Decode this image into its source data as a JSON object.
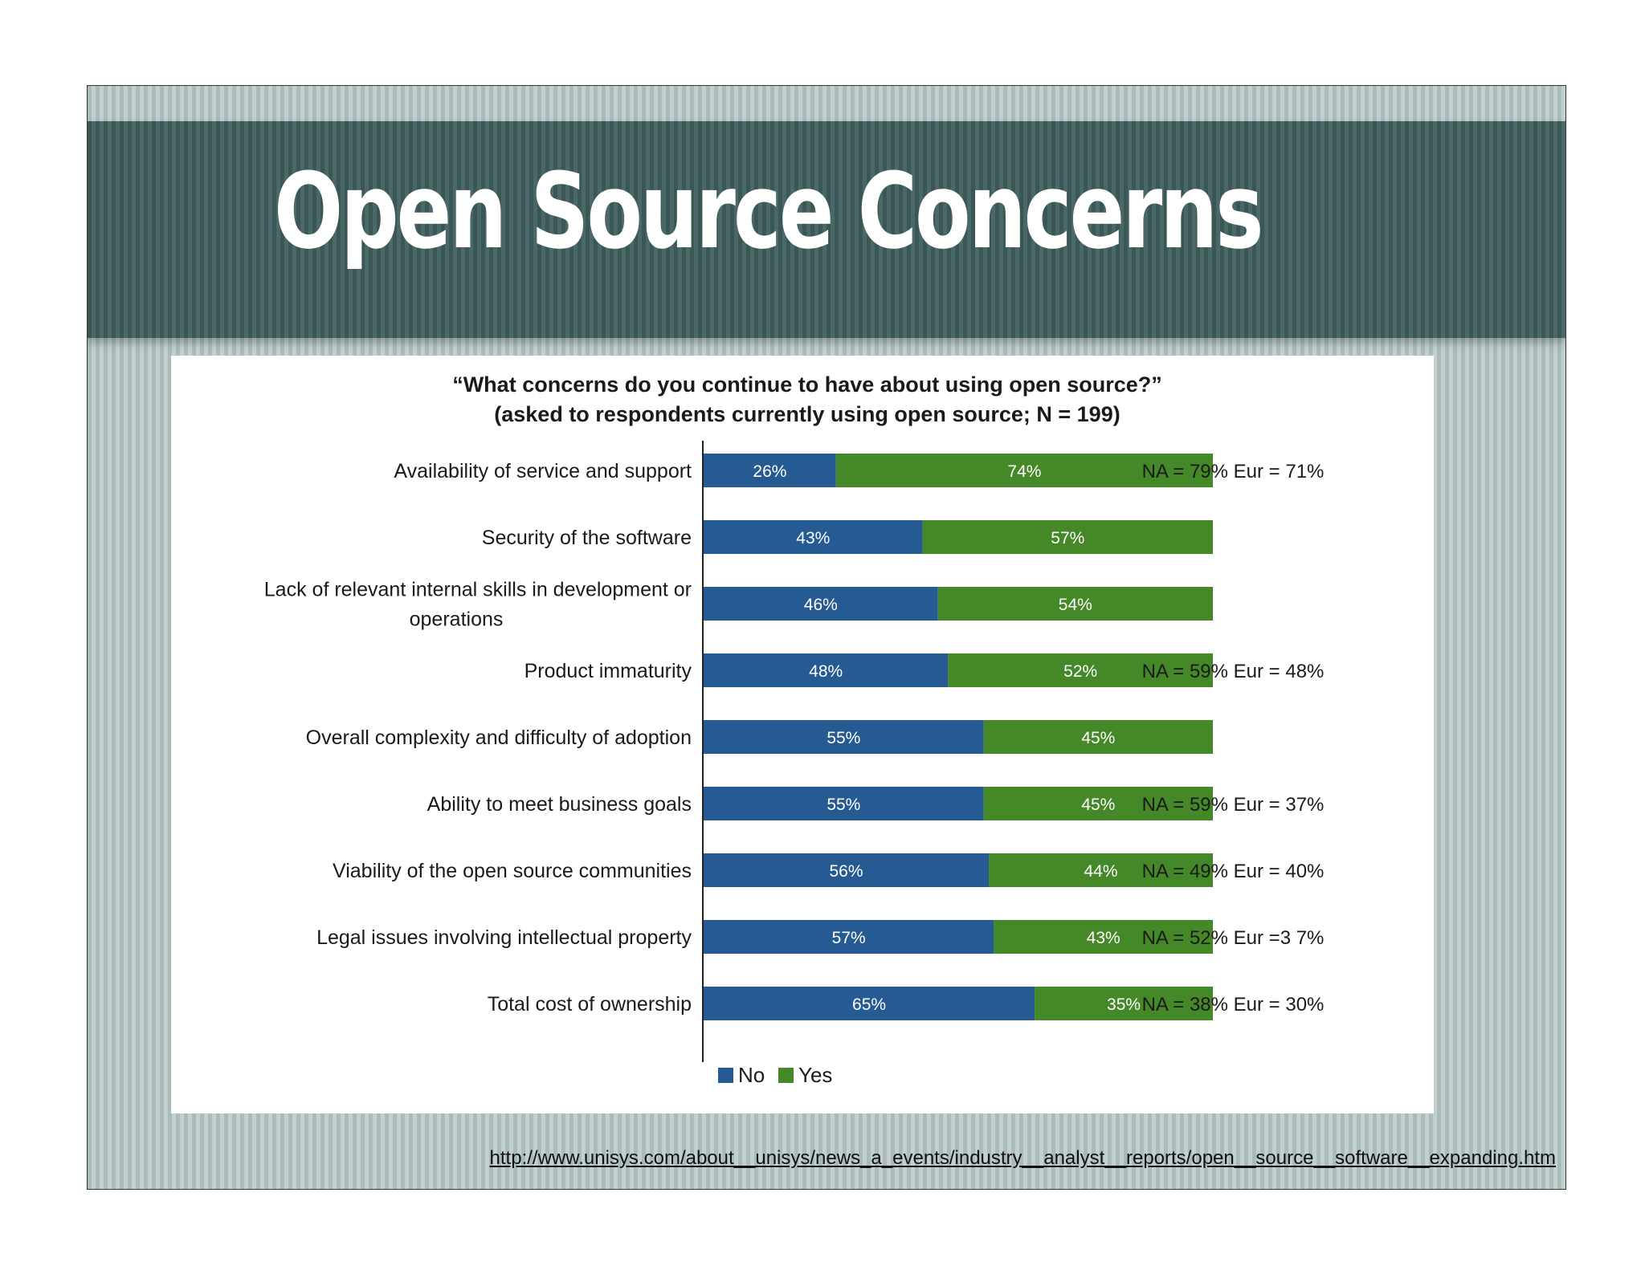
{
  "slide": {
    "title": "Open Source Concerns",
    "source_url": "http://www.unisys.com/about__unisys/news_a_events/industry__analyst__reports/open__source__software__expanding.htm"
  },
  "colors": {
    "no": "#265a92",
    "yes": "#458828",
    "axis": "#222222"
  },
  "chart_data": {
    "type": "bar",
    "orientation": "horizontal",
    "stacked": true,
    "title": "“What concerns do you continue to have about using open source?”",
    "subtitle": "(asked to respondents currently using open source; N = 199)",
    "categories": [
      "Availability of service and support",
      "Security of the software",
      "Lack of relevant internal skills in development or operations",
      "Product immaturity",
      "Overall complexity and difficulty of adoption",
      "Ability to meet business goals",
      "Viability of the open source communities",
      "Legal issues involving intellectual property",
      "Total cost of ownership"
    ],
    "category_lines": [
      [
        "Availability of service and support"
      ],
      [
        "Security of the software"
      ],
      [
        "Lack of relevant internal skills in development or",
        "operations"
      ],
      [
        "Product immaturity"
      ],
      [
        "Overall complexity and difficulty of adoption"
      ],
      [
        "Ability to meet business goals"
      ],
      [
        "Viability of the open source communities"
      ],
      [
        "Legal issues involving intellectual property"
      ],
      [
        "Total cost of ownership"
      ]
    ],
    "series": [
      {
        "name": "No",
        "values": [
          26,
          43,
          46,
          48,
          55,
          55,
          56,
          57,
          65
        ],
        "labels": [
          "26%",
          "43%",
          "46%",
          "48%",
          "55%",
          "55%",
          "56%",
          "57%",
          "65%"
        ]
      },
      {
        "name": "Yes",
        "values": [
          74,
          57,
          54,
          52,
          45,
          45,
          44,
          43,
          35
        ],
        "labels": [
          "74%",
          "57%",
          "54%",
          "52%",
          "45%",
          "45%",
          "44%",
          "43%",
          "35%"
        ]
      }
    ],
    "xlim": [
      0,
      100
    ],
    "annotations": [
      "NA = 79% Eur = 71%",
      "",
      "",
      "NA = 59% Eur = 48%",
      "",
      "NA = 59% Eur = 37%",
      "NA = 49% Eur = 40%",
      "NA = 52% Eur =3 7%",
      "NA = 38% Eur = 30%"
    ],
    "legend": {
      "position": "bottom",
      "entries": [
        "No",
        "Yes"
      ]
    },
    "grid": false
  }
}
